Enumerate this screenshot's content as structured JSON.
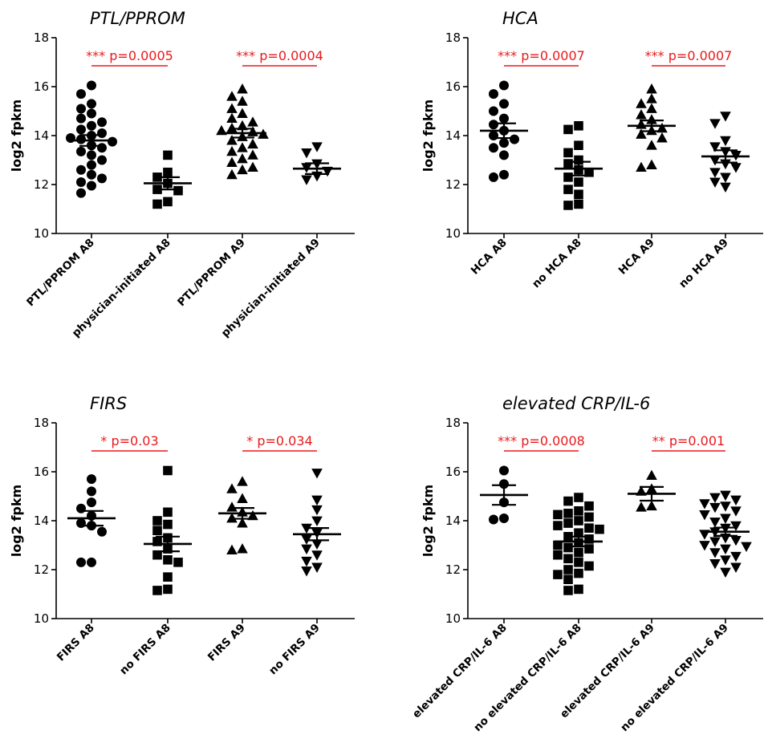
{
  "chart_data": [
    {
      "type": "scatter",
      "title": "PTL/PPROM",
      "ylabel": "log2 fpkm",
      "ylim": [
        10,
        18
      ],
      "yticks": [
        10,
        12,
        14,
        16,
        18
      ],
      "groups": [
        {
          "label": "PTL/PPROM  A8",
          "marker": "circle",
          "mean": 13.8,
          "sem": 0.22,
          "values": [
            16.05,
            15.7,
            15.3,
            15.1,
            14.9,
            14.7,
            14.55,
            14.4,
            14.25,
            14.1,
            14.0,
            13.9,
            13.85,
            13.75,
            13.6,
            13.5,
            13.35,
            13.2,
            13.0,
            12.8,
            12.6,
            12.4,
            12.25,
            12.1,
            11.95,
            11.65
          ]
        },
        {
          "label": "physician-initiated A8",
          "marker": "square",
          "mean": 12.05,
          "sem": 0.25,
          "values": [
            13.2,
            12.5,
            12.3,
            12.05,
            11.8,
            11.75,
            11.3,
            11.2
          ]
        },
        {
          "label": "PTL/PPROM  A9",
          "marker": "triangle-up",
          "mean": 14.1,
          "sem": 0.18,
          "values": [
            15.9,
            15.6,
            15.4,
            15.1,
            14.9,
            14.7,
            14.55,
            14.4,
            14.3,
            14.2,
            14.15,
            14.05,
            13.95,
            13.8,
            13.65,
            13.5,
            13.35,
            13.2,
            13.05,
            12.9,
            12.7,
            12.6,
            12.4
          ]
        },
        {
          "label": "physician-initiated A9",
          "marker": "triangle-down",
          "mean": 12.65,
          "sem": 0.22,
          "values": [
            13.55,
            13.3,
            12.85,
            12.7,
            12.55,
            12.35,
            12.2
          ]
        }
      ],
      "annotations": [
        {
          "text": "*** p=0.0005",
          "from": 0,
          "to": 1
        },
        {
          "text": "*** p=0.0004",
          "from": 2,
          "to": 3
        }
      ]
    },
    {
      "type": "scatter",
      "title": "HCA",
      "ylabel": "log2 fpkm",
      "ylim": [
        10,
        18
      ],
      "yticks": [
        10,
        12,
        14,
        16,
        18
      ],
      "groups": [
        {
          "label": "HCA  A8",
          "marker": "circle",
          "mean": 14.2,
          "sem": 0.3,
          "values": [
            16.05,
            15.7,
            15.3,
            15.0,
            14.7,
            14.45,
            14.2,
            14.0,
            13.85,
            13.7,
            13.5,
            13.2,
            12.4,
            12.3
          ]
        },
        {
          "label": "no HCA A8",
          "marker": "square",
          "mean": 12.65,
          "sem": 0.28,
          "values": [
            14.4,
            14.25,
            13.6,
            13.3,
            13.0,
            12.85,
            12.6,
            12.5,
            12.3,
            12.1,
            11.8,
            11.6,
            11.2,
            11.15
          ]
        },
        {
          "label": "HCA  A9",
          "marker": "triangle-up",
          "mean": 14.4,
          "sem": 0.22,
          "values": [
            15.9,
            15.5,
            15.3,
            15.1,
            14.85,
            14.65,
            14.45,
            14.3,
            14.2,
            14.05,
            13.9,
            13.6,
            12.8,
            12.7
          ]
        },
        {
          "label": "no HCA A9",
          "marker": "triangle-down",
          "mean": 13.15,
          "sem": 0.25,
          "values": [
            14.8,
            14.5,
            13.8,
            13.55,
            13.35,
            13.2,
            13.0,
            12.85,
            12.7,
            12.5,
            12.3,
            12.1,
            11.9
          ]
        }
      ],
      "annotations": [
        {
          "text": "*** p=0.0007",
          "from": 0,
          "to": 1
        },
        {
          "text": "*** p=0.0007",
          "from": 2,
          "to": 3
        }
      ]
    },
    {
      "type": "scatter",
      "title": "FIRS",
      "ylabel": "log2 fpkm",
      "ylim": [
        10,
        18
      ],
      "yticks": [
        10,
        12,
        14,
        16,
        18
      ],
      "groups": [
        {
          "label": "FIRS  A8",
          "marker": "circle",
          "mean": 14.1,
          "sem": 0.3,
          "values": [
            15.7,
            15.2,
            14.75,
            14.5,
            14.2,
            13.9,
            13.8,
            13.55,
            12.3,
            12.3
          ]
        },
        {
          "label": "no FIRS A8",
          "marker": "square",
          "mean": 13.05,
          "sem": 0.3,
          "values": [
            16.05,
            14.35,
            14.0,
            13.85,
            13.6,
            13.3,
            13.15,
            12.85,
            12.6,
            12.4,
            12.3,
            11.7,
            11.2,
            11.15
          ]
        },
        {
          "label": "FIRS  A9",
          "marker": "triangle-up",
          "mean": 14.3,
          "sem": 0.22,
          "values": [
            15.6,
            15.3,
            14.9,
            14.55,
            14.35,
            14.2,
            14.1,
            13.9,
            12.85,
            12.8
          ]
        },
        {
          "label": "no FIRS A9",
          "marker": "triangle-down",
          "mean": 13.45,
          "sem": 0.25,
          "values": [
            15.95,
            14.85,
            14.45,
            14.0,
            13.7,
            13.5,
            13.25,
            13.05,
            12.85,
            12.6,
            12.35,
            12.1,
            11.95
          ]
        }
      ],
      "annotations": [
        {
          "text": "* p=0.03",
          "from": 0,
          "to": 1
        },
        {
          "text": "* p=0.034",
          "from": 2,
          "to": 3
        }
      ]
    },
    {
      "type": "scatter",
      "title": "elevated CRP/IL-6",
      "ylabel": "log2 fpkm",
      "ylim": [
        10,
        18
      ],
      "yticks": [
        10,
        12,
        14,
        16,
        18
      ],
      "groups": [
        {
          "label": "elevated CRP/IL-6  A8",
          "marker": "circle",
          "mean": 15.05,
          "sem": 0.4,
          "values": [
            16.05,
            15.5,
            14.75,
            14.1,
            14.05
          ]
        },
        {
          "label": "no elevated CRP/IL-6 A8",
          "marker": "square",
          "mean": 13.15,
          "sem": 0.2,
          "values": [
            14.95,
            14.8,
            14.6,
            14.4,
            14.25,
            14.15,
            14.0,
            13.9,
            13.8,
            13.65,
            13.5,
            13.35,
            13.25,
            13.1,
            13.0,
            12.85,
            12.7,
            12.6,
            12.45,
            12.3,
            12.15,
            12.0,
            11.85,
            11.6,
            11.2,
            11.15,
            11.8,
            12.9,
            13.7,
            14.3
          ]
        },
        {
          "label": "elevated CRP/IL-6 A9",
          "marker": "triangle-up",
          "mean": 15.1,
          "sem": 0.28,
          "values": [
            15.85,
            15.3,
            15.2,
            14.6,
            14.55
          ]
        },
        {
          "label": "no elevated CRP/IL-6  A9",
          "marker": "triangle-down",
          "mean": 13.55,
          "sem": 0.17,
          "values": [
            15.05,
            14.95,
            14.85,
            14.7,
            14.55,
            14.4,
            14.25,
            14.1,
            13.95,
            13.8,
            13.7,
            13.55,
            13.45,
            13.3,
            13.15,
            13.0,
            12.85,
            12.7,
            12.55,
            12.4,
            12.25,
            12.1,
            11.9,
            14.6,
            13.2,
            12.95
          ]
        }
      ],
      "annotations": [
        {
          "text": "*** p=0.0008",
          "from": 0,
          "to": 1
        },
        {
          "text": "** p=0.001",
          "from": 2,
          "to": 3
        }
      ]
    }
  ]
}
